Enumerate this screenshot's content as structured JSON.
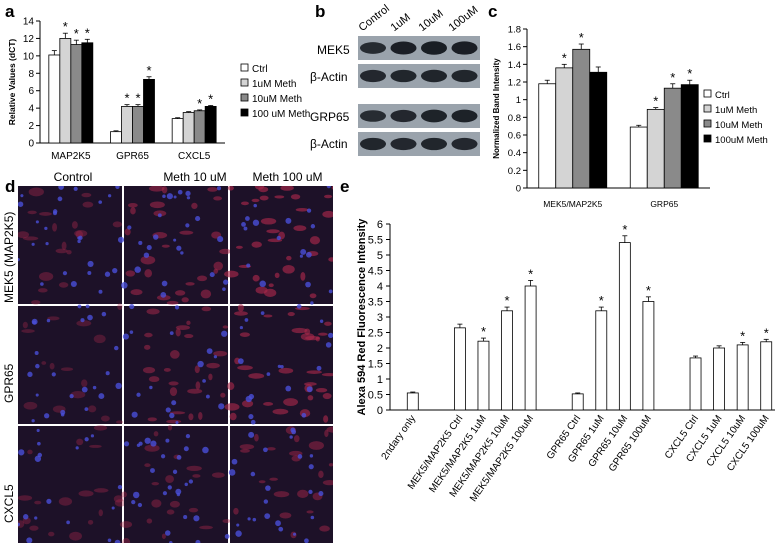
{
  "panels": {
    "a": "a",
    "b": "b",
    "c": "c",
    "d": "d",
    "e": "e"
  },
  "chart_data": [
    {
      "id": "a",
      "type": "bar",
      "ylabel": "Relative Values (dCT)",
      "ylim": [
        0,
        14
      ],
      "yticks": [
        0,
        2,
        4,
        6,
        8,
        10,
        12,
        14
      ],
      "categories": [
        "MAP2K5",
        "GPR65",
        "CXCL5"
      ],
      "series": [
        {
          "name": "Ctrl",
          "values": [
            10.1,
            1.3,
            2.8
          ],
          "errors": [
            0.5,
            0.1,
            0.1
          ],
          "sig": [
            false,
            false,
            false
          ],
          "fill": "#ffffff"
        },
        {
          "name": "1uM Meth",
          "values": [
            12.0,
            4.2,
            3.5
          ],
          "errors": [
            0.6,
            0.2,
            0.1
          ],
          "sig": [
            true,
            true,
            false
          ],
          "fill": "#d4d4d4"
        },
        {
          "name": "10uM Meth",
          "values": [
            11.3,
            4.2,
            3.7
          ],
          "errors": [
            0.5,
            0.2,
            0.1
          ],
          "sig": [
            true,
            true,
            true
          ],
          "fill": "#8a8a8a"
        },
        {
          "name": "100 uM Meth",
          "values": [
            11.5,
            7.3,
            4.2
          ],
          "errors": [
            0.4,
            0.3,
            0.1
          ],
          "sig": [
            true,
            true,
            true
          ],
          "fill": "#000000"
        }
      ],
      "sig_mark": "*",
      "legend": "right"
    },
    {
      "id": "c",
      "type": "bar",
      "ylabel": "Normalized Band Intensity",
      "ylim": [
        0,
        1.8
      ],
      "yticks": [
        0,
        0.2,
        0.4,
        0.6,
        0.8,
        1,
        1.2,
        1.4,
        1.6,
        1.8
      ],
      "categories": [
        "MEK5/MAP2K5",
        "GRP65"
      ],
      "series": [
        {
          "name": "Ctrl",
          "values": [
            1.18,
            0.69
          ],
          "errors": [
            0.04,
            0.02
          ],
          "sig": [
            false,
            false
          ],
          "fill": "#ffffff"
        },
        {
          "name": "1uM Meth",
          "values": [
            1.36,
            0.89
          ],
          "errors": [
            0.04,
            0.02
          ],
          "sig": [
            true,
            true
          ],
          "fill": "#d4d4d4"
        },
        {
          "name": "10uM Meth",
          "values": [
            1.57,
            1.13
          ],
          "errors": [
            0.06,
            0.05
          ],
          "sig": [
            true,
            true
          ],
          "fill": "#8a8a8a"
        },
        {
          "name": "100uM Meth",
          "values": [
            1.31,
            1.17
          ],
          "errors": [
            0.06,
            0.05
          ],
          "sig": [
            false,
            true
          ],
          "fill": "#000000"
        }
      ],
      "sig_mark": "*",
      "legend": "right"
    },
    {
      "id": "e",
      "type": "bar",
      "ylabel": "Alexa 594 Red Fluorescence Intensity",
      "ylim": [
        0,
        6
      ],
      "yticks": [
        0,
        0.5,
        1,
        1.5,
        2,
        2.5,
        3,
        3.5,
        4,
        4.5,
        5,
        5.5,
        6
      ],
      "categories": [
        "2ndary only",
        "",
        "MEK5/MAP2K5 Ctrl",
        "MEK5/MAP2K5 1uM",
        "MEK5/MAP2K5 10uM",
        "MEK5/MAP2K5 100uM",
        "",
        "GPR65 Ctrl",
        "GPR65 1uM",
        "GPR65 10uM",
        "GPR65 100uM",
        "",
        "CXCL5 Ctrl",
        "CXCL5 1uM",
        "CXCL5 10uM",
        "CXCL5 100uM"
      ],
      "values": [
        0.55,
        null,
        2.65,
        2.22,
        3.2,
        4.0,
        null,
        0.52,
        3.2,
        5.4,
        3.5,
        null,
        1.68,
        2.0,
        2.1,
        2.2
      ],
      "errors": [
        0.03,
        null,
        0.12,
        0.1,
        0.12,
        0.18,
        null,
        0.03,
        0.12,
        0.22,
        0.15,
        null,
        0.06,
        0.07,
        0.08,
        0.08
      ],
      "sig": [
        false,
        false,
        false,
        true,
        true,
        true,
        false,
        false,
        true,
        true,
        true,
        false,
        false,
        false,
        true,
        true
      ],
      "sig_mark": "*"
    }
  ],
  "western_blot": {
    "headers": [
      "Control",
      "1uM",
      "10uM",
      "100uM"
    ],
    "rows": [
      "MEK5",
      "β-Actin",
      "GRP65",
      "β-Actin"
    ],
    "band_intensity": [
      [
        0.62,
        0.85,
        0.9,
        0.88
      ],
      [
        0.7,
        0.72,
        0.74,
        0.72
      ],
      [
        0.6,
        0.7,
        0.78,
        0.8
      ],
      [
        0.72,
        0.7,
        0.72,
        0.7
      ]
    ]
  },
  "micrographs": {
    "columns": [
      "Control",
      "Meth 10 uM",
      "Meth 100 uM"
    ],
    "rows": [
      "MEK5 (MAP2K5)",
      "GPR65",
      "CXCL5"
    ]
  }
}
